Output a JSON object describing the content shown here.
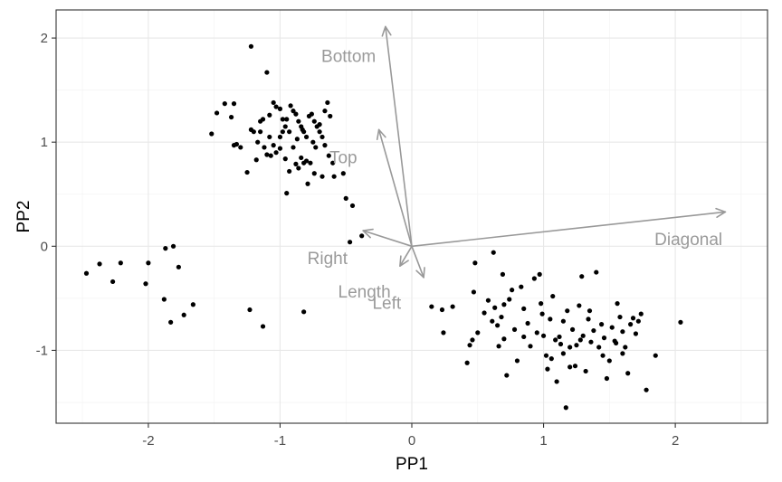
{
  "chart_data": {
    "type": "scatter",
    "title": "",
    "xlabel": "PP1",
    "ylabel": "PP2",
    "xlim": [
      -2.7,
      2.7
    ],
    "ylim": [
      -1.7,
      2.27
    ],
    "x_ticks": [
      -2,
      -1,
      0,
      1,
      2
    ],
    "x_tick_labels": [
      "-2",
      "-1",
      "0",
      "1",
      "2"
    ],
    "y_ticks": [
      -1,
      0,
      1,
      2
    ],
    "y_tick_labels": [
      "-1",
      "0",
      "1",
      "2"
    ],
    "grid": true,
    "colors": {
      "points": "#000000",
      "arrows": "#999999",
      "grid": "#ebebeb",
      "panel_border": "#333333"
    },
    "points": [
      [
        -2.47,
        -0.26
      ],
      [
        -2.37,
        -0.17
      ],
      [
        -2.27,
        -0.34
      ],
      [
        -2.21,
        -0.16
      ],
      [
        -2.02,
        -0.36
      ],
      [
        -2.0,
        -0.16
      ],
      [
        -1.87,
        -0.02
      ],
      [
        -1.81,
        0.0
      ],
      [
        -1.77,
        -0.2
      ],
      [
        -1.88,
        -0.51
      ],
      [
        -1.83,
        -0.73
      ],
      [
        -1.73,
        -0.66
      ],
      [
        -1.66,
        -0.56
      ],
      [
        -1.23,
        -0.61
      ],
      [
        -1.13,
        -0.77
      ],
      [
        -0.82,
        -0.63
      ],
      [
        -1.22,
        1.92
      ],
      [
        -1.1,
        1.67
      ],
      [
        -1.42,
        1.37
      ],
      [
        -1.35,
        1.37
      ],
      [
        -1.48,
        1.28
      ],
      [
        -1.52,
        1.08
      ],
      [
        -1.37,
        1.24
      ],
      [
        -1.35,
        0.97
      ],
      [
        -1.33,
        0.98
      ],
      [
        -1.3,
        0.95
      ],
      [
        -1.25,
        0.71
      ],
      [
        -1.18,
        0.83
      ],
      [
        -1.2,
        1.1
      ],
      [
        -1.22,
        1.12
      ],
      [
        -1.15,
        1.2
      ],
      [
        -1.13,
        1.22
      ],
      [
        -1.08,
        1.26
      ],
      [
        -1.05,
        1.38
      ],
      [
        -1.03,
        1.34
      ],
      [
        -1.0,
        1.32
      ],
      [
        -0.98,
        1.22
      ],
      [
        -0.96,
        1.15
      ],
      [
        -0.93,
        1.1
      ],
      [
        -0.92,
        1.35
      ],
      [
        -0.9,
        1.3
      ],
      [
        -0.88,
        1.27
      ],
      [
        -0.86,
        1.2
      ],
      [
        -0.84,
        1.15
      ],
      [
        -0.82,
        1.1
      ],
      [
        -0.8,
        1.05
      ],
      [
        -0.78,
        1.25
      ],
      [
        -0.76,
        1.27
      ],
      [
        -0.74,
        1.2
      ],
      [
        -0.72,
        1.15
      ],
      [
        -0.7,
        1.1
      ],
      [
        -0.68,
        1.05
      ],
      [
        -0.66,
        1.3
      ],
      [
        -0.64,
        1.38
      ],
      [
        -0.62,
        1.25
      ],
      [
        -1.17,
        1.0
      ],
      [
        -1.12,
        0.95
      ],
      [
        -1.1,
        0.88
      ],
      [
        -1.07,
        0.87
      ],
      [
        -1.05,
        0.97
      ],
      [
        -1.03,
        0.9
      ],
      [
        -1.0,
        0.94
      ],
      [
        -0.98,
        1.1
      ],
      [
        -0.96,
        0.84
      ],
      [
        -0.93,
        0.72
      ],
      [
        -0.9,
        0.95
      ],
      [
        -0.88,
        0.79
      ],
      [
        -0.86,
        0.75
      ],
      [
        -0.84,
        0.85
      ],
      [
        -0.82,
        0.8
      ],
      [
        -0.8,
        0.82
      ],
      [
        -0.79,
        0.6
      ],
      [
        -0.77,
        0.8
      ],
      [
        -0.74,
        0.7
      ],
      [
        -0.73,
        0.95
      ],
      [
        -0.95,
        0.51
      ],
      [
        -0.68,
        0.67
      ],
      [
        -0.63,
        0.87
      ],
      [
        -0.6,
        0.8
      ],
      [
        -0.59,
        0.67
      ],
      [
        -0.52,
        0.7
      ],
      [
        -0.5,
        0.46
      ],
      [
        -0.45,
        0.39
      ],
      [
        -0.47,
        0.04
      ],
      [
        -0.38,
        0.1
      ],
      [
        -1.15,
        1.1
      ],
      [
        -1.08,
        1.05
      ],
      [
        -1.0,
        1.05
      ],
      [
        -0.95,
        1.22
      ],
      [
        -0.87,
        1.03
      ],
      [
        -0.83,
        1.12
      ],
      [
        -0.75,
        1.0
      ],
      [
        -0.7,
        1.17
      ],
      [
        -0.66,
        0.97
      ],
      [
        0.15,
        -0.58
      ],
      [
        0.23,
        -0.61
      ],
      [
        0.31,
        -0.58
      ],
      [
        0.24,
        -0.83
      ],
      [
        0.42,
        -1.12
      ],
      [
        0.47,
        -0.44
      ],
      [
        0.48,
        -0.16
      ],
      [
        0.5,
        -0.83
      ],
      [
        0.44,
        -0.95
      ],
      [
        0.46,
        -0.9
      ],
      [
        0.55,
        -0.64
      ],
      [
        0.58,
        -0.52
      ],
      [
        0.62,
        -0.06
      ],
      [
        0.61,
        -0.72
      ],
      [
        0.63,
        -0.59
      ],
      [
        0.65,
        -0.76
      ],
      [
        0.68,
        -0.68
      ],
      [
        0.7,
        -0.89
      ],
      [
        0.72,
        -1.24
      ],
      [
        0.74,
        -0.51
      ],
      [
        0.76,
        -0.42
      ],
      [
        0.78,
        -0.8
      ],
      [
        0.8,
        -1.1
      ],
      [
        0.83,
        -0.39
      ],
      [
        0.85,
        -0.6
      ],
      [
        0.88,
        -0.74
      ],
      [
        0.9,
        -0.96
      ],
      [
        0.93,
        -0.31
      ],
      [
        0.95,
        -0.83
      ],
      [
        0.97,
        -0.27
      ],
      [
        0.98,
        -0.55
      ],
      [
        1.0,
        -0.86
      ],
      [
        1.02,
        -1.05
      ],
      [
        1.03,
        -1.18
      ],
      [
        1.05,
        -0.7
      ],
      [
        1.07,
        -0.48
      ],
      [
        1.09,
        -0.9
      ],
      [
        1.1,
        -1.3
      ],
      [
        1.12,
        -0.87
      ],
      [
        1.13,
        -0.94
      ],
      [
        1.15,
        -1.03
      ],
      [
        1.17,
        -1.55
      ],
      [
        1.18,
        -0.62
      ],
      [
        1.2,
        -1.16
      ],
      [
        1.22,
        -0.8
      ],
      [
        1.24,
        -1.15
      ],
      [
        1.25,
        -0.95
      ],
      [
        1.27,
        -0.57
      ],
      [
        1.29,
        -0.29
      ],
      [
        1.3,
        -0.86
      ],
      [
        1.32,
        -1.2
      ],
      [
        1.34,
        -0.7
      ],
      [
        1.36,
        -0.92
      ],
      [
        1.38,
        -0.81
      ],
      [
        1.4,
        -0.25
      ],
      [
        1.42,
        -0.97
      ],
      [
        1.44,
        -0.75
      ],
      [
        1.46,
        -0.88
      ],
      [
        1.48,
        -1.27
      ],
      [
        1.5,
        -1.1
      ],
      [
        1.52,
        -0.78
      ],
      [
        1.54,
        -0.91
      ],
      [
        1.56,
        -0.55
      ],
      [
        1.58,
        -0.68
      ],
      [
        1.6,
        -1.03
      ],
      [
        1.62,
        -0.97
      ],
      [
        1.64,
        -1.22
      ],
      [
        1.66,
        -0.75
      ],
      [
        1.68,
        -0.69
      ],
      [
        1.7,
        -0.84
      ],
      [
        1.72,
        -0.72
      ],
      [
        1.74,
        -0.65
      ],
      [
        1.78,
        -1.38
      ],
      [
        1.85,
        -1.05
      ],
      [
        2.04,
        -0.73
      ],
      [
        0.69,
        -0.27
      ],
      [
        0.66,
        -0.96
      ],
      [
        0.7,
        -0.56
      ],
      [
        0.85,
        -0.87
      ],
      [
        0.99,
        -0.65
      ],
      [
        1.06,
        -1.08
      ],
      [
        1.15,
        -0.72
      ],
      [
        1.2,
        -0.97
      ],
      [
        1.28,
        -0.9
      ],
      [
        1.35,
        -0.62
      ],
      [
        1.45,
        -1.05
      ],
      [
        1.55,
        -0.93
      ],
      [
        1.6,
        -0.82
      ]
    ],
    "loadings": [
      {
        "label": "Bottom",
        "x": -0.2,
        "y": 2.11,
        "label_x": -0.48,
        "label_y": 1.83
      },
      {
        "label": "Top",
        "x": -0.25,
        "y": 1.12,
        "label_x": -0.52,
        "label_y": 0.86
      },
      {
        "label": "Diagonal",
        "x": 2.38,
        "y": 0.33,
        "label_x": 2.1,
        "label_y": 0.07
      },
      {
        "label": "Right",
        "x": -0.37,
        "y": 0.15,
        "label_x": -0.64,
        "label_y": -0.11
      },
      {
        "label": "Length",
        "x": -0.09,
        "y": -0.19,
        "label_x": -0.36,
        "label_y": -0.43
      },
      {
        "label": "Left",
        "x": 0.09,
        "y": -0.3,
        "label_x": -0.19,
        "label_y": -0.54
      }
    ]
  }
}
